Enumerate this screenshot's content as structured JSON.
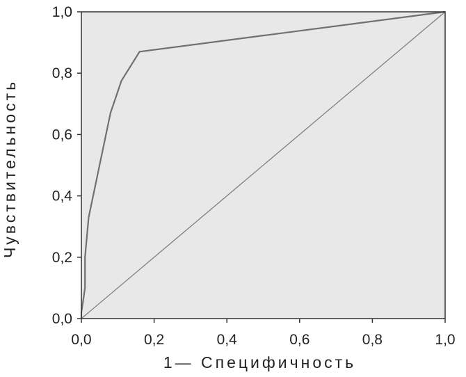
{
  "chart_data": {
    "type": "line",
    "title": "",
    "xlabel": "1— Специфичность",
    "ylabel": "Чувствительность",
    "xlim": [
      0,
      1
    ],
    "ylim": [
      0,
      1
    ],
    "x_ticks": [
      "0,0",
      "0,2",
      "0,4",
      "0,6",
      "0,8",
      "1,0"
    ],
    "y_ticks": [
      "0,0",
      "0,2",
      "0,4",
      "0,6",
      "0,8",
      "1,0"
    ],
    "grid": false,
    "series": [
      {
        "points": [
          [
            0.0,
            0.0
          ],
          [
            0.0,
            0.02
          ],
          [
            0.01,
            0.1
          ],
          [
            0.01,
            0.2
          ],
          [
            0.02,
            0.33
          ],
          [
            0.08,
            0.67
          ],
          [
            0.11,
            0.775
          ],
          [
            0.16,
            0.87
          ],
          [
            1.0,
            1.0
          ]
        ]
      },
      {
        "points": [
          [
            0.0,
            0.0
          ],
          [
            1.0,
            1.0
          ]
        ]
      }
    ],
    "colors": {
      "plot_background": "#e8e8e8",
      "roc_line": "#707070",
      "diagonal_line": "#808080",
      "axis": "#333333"
    }
  }
}
